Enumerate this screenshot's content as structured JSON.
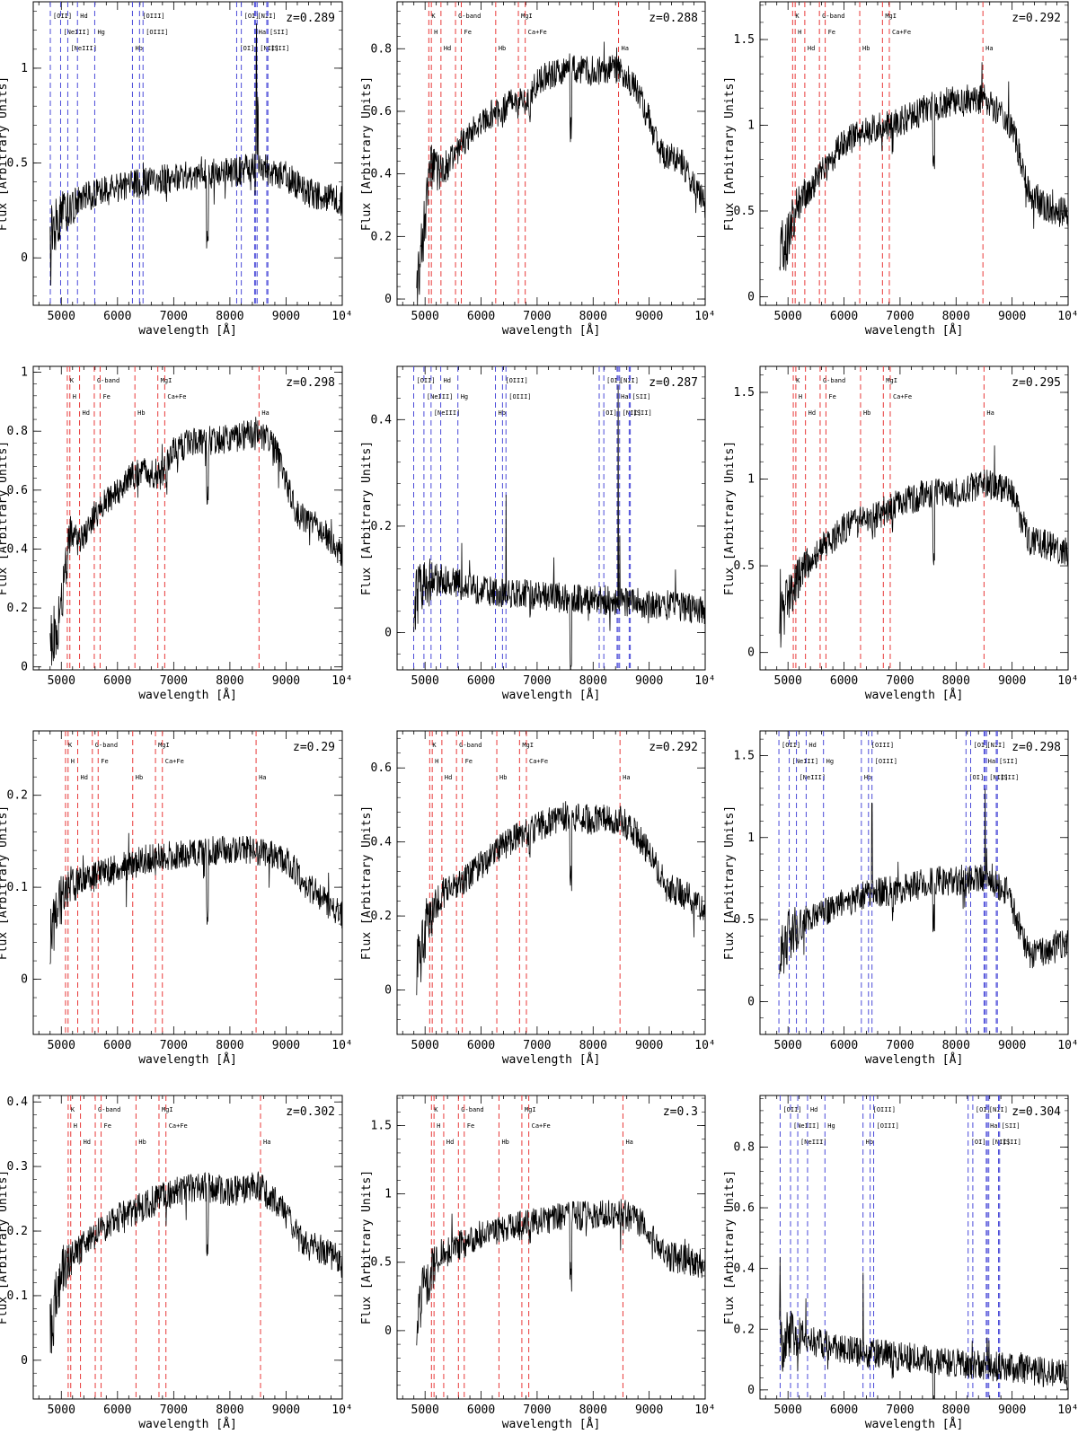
{
  "axis_labels": {
    "x": "wavelength [Å]",
    "y": "Flux [Arbitrary Units]"
  },
  "line_sets": {
    "absorption": {
      "color": "#e83a3a",
      "lines": [
        {
          "label": "K",
          "rest": 3934
        },
        {
          "label": "H",
          "rest": 3969
        },
        {
          "label": "Hd",
          "rest": 4102
        },
        {
          "label": "G-band",
          "rest": 4304
        },
        {
          "label": "Fe",
          "rest": 4384
        },
        {
          "label": "Hb",
          "rest": 4861
        },
        {
          "label": "MgI",
          "rest": 5175
        },
        {
          "label": "Ca+Fe",
          "rest": 5270
        },
        {
          "label": "Ha",
          "rest": 6563
        }
      ]
    },
    "emission": {
      "color": "#4b4bd8",
      "lines": [
        {
          "label": "[OII]",
          "rest": 3727
        },
        {
          "label": "[NeIII]",
          "rest": 3869
        },
        {
          "label": "[NeIII]",
          "rest": 3968
        },
        {
          "label": "Hd",
          "rest": 4102
        },
        {
          "label": "Hg",
          "rest": 4340
        },
        {
          "label": "Hb",
          "rest": 4861
        },
        {
          "label": "[OIII]",
          "rest": 4959
        },
        {
          "label": "[OIII]",
          "rest": 5007
        },
        {
          "label": "[OI]",
          "rest": 6300
        },
        {
          "label": "[OI]",
          "rest": 6364
        },
        {
          "label": "Ha",
          "rest": 6563
        },
        {
          "label": "[NII]",
          "rest": 6583
        },
        {
          "label": "[NII]",
          "rest": 6548
        },
        {
          "label": "[SII]",
          "rest": 6716
        },
        {
          "label": "[SII]",
          "rest": 6731
        }
      ]
    }
  },
  "chart_data": [
    {
      "type": "line",
      "z_label": "z=0.289",
      "z": 0.289,
      "lines": "emission",
      "xlim": [
        4500,
        10000
      ],
      "ylim": [
        -0.25,
        1.35
      ],
      "xticks": [
        "5000",
        "6000",
        "7000",
        "8000",
        "9000",
        "10⁴"
      ],
      "yticks": [
        "0",
        "0.5",
        "1"
      ],
      "continuum": [
        [
          4800,
          0.14
        ],
        [
          5000,
          0.22
        ],
        [
          5400,
          0.32
        ],
        [
          6000,
          0.37
        ],
        [
          6500,
          0.4
        ],
        [
          7000,
          0.42
        ],
        [
          7500,
          0.44
        ],
        [
          8000,
          0.45
        ],
        [
          8500,
          0.48
        ],
        [
          9000,
          0.43
        ],
        [
          9400,
          0.34
        ],
        [
          10000,
          0.3
        ]
      ],
      "emission_peaks": [
        [
          6460,
          0.1
        ],
        [
          8470,
          0.68
        ],
        [
          8500,
          0.3
        ]
      ]
    },
    {
      "type": "line",
      "z_label": "z=0.288",
      "z": 0.288,
      "lines": "absorption",
      "xlim": [
        4500,
        10000
      ],
      "ylim": [
        -0.02,
        0.95
      ],
      "xticks": [
        "5000",
        "6000",
        "7000",
        "8000",
        "9000",
        "10⁴"
      ],
      "yticks": [
        "0",
        "0.2",
        "0.4",
        "0.6",
        "0.8"
      ],
      "continuum": [
        [
          4850,
          0.02
        ],
        [
          5000,
          0.25
        ],
        [
          5100,
          0.42
        ],
        [
          5300,
          0.4
        ],
        [
          5600,
          0.48
        ],
        [
          6000,
          0.57
        ],
        [
          6500,
          0.62
        ],
        [
          6800,
          0.63
        ],
        [
          7000,
          0.7
        ],
        [
          7500,
          0.74
        ],
        [
          8000,
          0.73
        ],
        [
          8400,
          0.74
        ],
        [
          8800,
          0.67
        ],
        [
          9200,
          0.47
        ],
        [
          9600,
          0.43
        ],
        [
          10000,
          0.3
        ]
      ]
    },
    {
      "type": "line",
      "z_label": "z=0.292",
      "z": 0.292,
      "lines": "absorption",
      "xlim": [
        4500,
        10000
      ],
      "ylim": [
        -0.05,
        1.72
      ],
      "xticks": [
        "5000",
        "6000",
        "7000",
        "8000",
        "9000",
        "10⁴"
      ],
      "yticks": [
        "0",
        "0.5",
        "1",
        "1.5"
      ],
      "continuum": [
        [
          4850,
          0.22
        ],
        [
          5000,
          0.35
        ],
        [
          5200,
          0.55
        ],
        [
          5600,
          0.72
        ],
        [
          6000,
          0.9
        ],
        [
          6500,
          0.98
        ],
        [
          7000,
          1.02
        ],
        [
          7500,
          1.1
        ],
        [
          8000,
          1.15
        ],
        [
          8500,
          1.15
        ],
        [
          9000,
          1.0
        ],
        [
          9300,
          0.6
        ],
        [
          9600,
          0.52
        ],
        [
          10000,
          0.48
        ]
      ]
    },
    {
      "type": "line",
      "z_label": "z=0.298",
      "z": 0.298,
      "lines": "absorption",
      "xlim": [
        4500,
        10000
      ],
      "ylim": [
        -0.01,
        1.02
      ],
      "xticks": [
        "5000",
        "6000",
        "7000",
        "8000",
        "9000",
        "10⁴"
      ],
      "yticks": [
        "0",
        "0.2",
        "0.4",
        "0.6",
        "0.8",
        "1"
      ],
      "continuum": [
        [
          4800,
          0.05
        ],
        [
          5000,
          0.2
        ],
        [
          5150,
          0.45
        ],
        [
          5300,
          0.42
        ],
        [
          5600,
          0.52
        ],
        [
          6000,
          0.6
        ],
        [
          6400,
          0.67
        ],
        [
          6800,
          0.65
        ],
        [
          7000,
          0.74
        ],
        [
          7500,
          0.77
        ],
        [
          8000,
          0.77
        ],
        [
          8500,
          0.8
        ],
        [
          8800,
          0.74
        ],
        [
          9200,
          0.52
        ],
        [
          9600,
          0.47
        ],
        [
          10000,
          0.38
        ]
      ]
    },
    {
      "type": "line",
      "z_label": "z=0.287",
      "z": 0.287,
      "lines": "emission",
      "xlim": [
        4500,
        10000
      ],
      "ylim": [
        -0.07,
        0.5
      ],
      "xticks": [
        "5000",
        "6000",
        "7000",
        "8000",
        "9000",
        "10⁴"
      ],
      "yticks": [
        "0",
        "0.2",
        "0.4"
      ],
      "continuum": [
        [
          4800,
          0.06
        ],
        [
          5000,
          0.1
        ],
        [
          5300,
          0.1
        ],
        [
          6000,
          0.08
        ],
        [
          6500,
          0.075
        ],
        [
          7000,
          0.07
        ],
        [
          7500,
          0.065
        ],
        [
          8000,
          0.06
        ],
        [
          8500,
          0.06
        ],
        [
          9000,
          0.055
        ],
        [
          9500,
          0.05
        ],
        [
          10000,
          0.04
        ]
      ],
      "emission_peaks": [
        [
          6445,
          0.18
        ],
        [
          8447,
          0.38
        ],
        [
          8474,
          0.1
        ]
      ]
    },
    {
      "type": "line",
      "z_label": "z=0.295",
      "z": 0.295,
      "lines": "absorption",
      "xlim": [
        4500,
        10000
      ],
      "ylim": [
        -0.1,
        1.65
      ],
      "xticks": [
        "5000",
        "6000",
        "7000",
        "8000",
        "9000",
        "10⁴"
      ],
      "yticks": [
        "0",
        "0.5",
        "1",
        "1.5"
      ],
      "continuum": [
        [
          4850,
          0.18
        ],
        [
          5000,
          0.32
        ],
        [
          5300,
          0.5
        ],
        [
          5600,
          0.6
        ],
        [
          6000,
          0.72
        ],
        [
          6500,
          0.78
        ],
        [
          7000,
          0.86
        ],
        [
          7500,
          0.92
        ],
        [
          8000,
          0.92
        ],
        [
          8500,
          0.98
        ],
        [
          9000,
          0.92
        ],
        [
          9300,
          0.65
        ],
        [
          9600,
          0.62
        ],
        [
          10000,
          0.58
        ]
      ]
    },
    {
      "type": "line",
      "z_label": "z=0.29",
      "z": 0.29,
      "lines": "absorption",
      "xlim": [
        4500,
        10000
      ],
      "ylim": [
        -0.06,
        0.27
      ],
      "xticks": [
        "5000",
        "6000",
        "7000",
        "8000",
        "9000",
        "10⁴"
      ],
      "yticks": [
        "0",
        "0.1",
        "0.2"
      ],
      "continuum": [
        [
          4800,
          0.05
        ],
        [
          4950,
          0.08
        ],
        [
          5100,
          0.1
        ],
        [
          5500,
          0.11
        ],
        [
          6000,
          0.12
        ],
        [
          6500,
          0.13
        ],
        [
          7000,
          0.135
        ],
        [
          7500,
          0.14
        ],
        [
          8000,
          0.14
        ],
        [
          8500,
          0.14
        ],
        [
          9000,
          0.13
        ],
        [
          9400,
          0.1
        ],
        [
          10000,
          0.07
        ]
      ]
    },
    {
      "type": "line",
      "z_label": "z=0.292",
      "z": 0.292,
      "lines": "absorption",
      "xlim": [
        4500,
        10000
      ],
      "ylim": [
        -0.12,
        0.7
      ],
      "xticks": [
        "5000",
        "6000",
        "7000",
        "8000",
        "9000",
        "10⁴"
      ],
      "yticks": [
        "0",
        "0.2",
        "0.4",
        "0.6"
      ],
      "continuum": [
        [
          4850,
          0.05
        ],
        [
          5000,
          0.15
        ],
        [
          5300,
          0.26
        ],
        [
          5700,
          0.3
        ],
        [
          6000,
          0.34
        ],
        [
          6500,
          0.4
        ],
        [
          7000,
          0.44
        ],
        [
          7500,
          0.47
        ],
        [
          8000,
          0.46
        ],
        [
          8500,
          0.46
        ],
        [
          8900,
          0.4
        ],
        [
          9300,
          0.28
        ],
        [
          9700,
          0.25
        ],
        [
          10000,
          0.22
        ]
      ]
    },
    {
      "type": "line",
      "z_label": "z=0.298",
      "z": 0.298,
      "lines": "emission",
      "xlim": [
        4500,
        10000
      ],
      "ylim": [
        -0.2,
        1.65
      ],
      "xticks": [
        "5000",
        "6000",
        "7000",
        "8000",
        "9000",
        "10⁴"
      ],
      "yticks": [
        "0",
        "0.5",
        "1",
        "1.5"
      ],
      "continuum": [
        [
          4850,
          0.3
        ],
        [
          5000,
          0.4
        ],
        [
          5400,
          0.52
        ],
        [
          6000,
          0.6
        ],
        [
          6500,
          0.66
        ],
        [
          7000,
          0.68
        ],
        [
          7500,
          0.73
        ],
        [
          8000,
          0.74
        ],
        [
          8500,
          0.76
        ],
        [
          8900,
          0.68
        ],
        [
          9300,
          0.28
        ],
        [
          9500,
          0.3
        ],
        [
          10000,
          0.35
        ]
      ],
      "emission_peaks": [
        [
          6500,
          0.55
        ],
        [
          8519,
          0.6
        ],
        [
          8545,
          0.25
        ]
      ]
    },
    {
      "type": "line",
      "z_label": "z=0.302",
      "z": 0.302,
      "lines": "absorption",
      "xlim": [
        4500,
        10000
      ],
      "ylim": [
        -0.06,
        0.41
      ],
      "xticks": [
        "5000",
        "6000",
        "7000",
        "8000",
        "9000",
        "10⁴"
      ],
      "yticks": [
        "0",
        "0.1",
        "0.2",
        "0.3",
        "0.4"
      ],
      "continuum": [
        [
          4800,
          0.04
        ],
        [
          5000,
          0.14
        ],
        [
          5300,
          0.17
        ],
        [
          5700,
          0.2
        ],
        [
          6000,
          0.22
        ],
        [
          6500,
          0.24
        ],
        [
          7000,
          0.26
        ],
        [
          7500,
          0.27
        ],
        [
          8000,
          0.26
        ],
        [
          8500,
          0.27
        ],
        [
          8900,
          0.24
        ],
        [
          9300,
          0.18
        ],
        [
          9700,
          0.17
        ],
        [
          10000,
          0.15
        ]
      ]
    },
    {
      "type": "line",
      "z_label": "z=0.3",
      "z": 0.3,
      "lines": "absorption",
      "xlim": [
        4500,
        10000
      ],
      "ylim": [
        -0.5,
        1.72
      ],
      "xticks": [
        "5000",
        "6000",
        "7000",
        "8000",
        "9000",
        "10⁴"
      ],
      "yticks": [
        "0",
        "0.5",
        "1",
        "1.5"
      ],
      "continuum": [
        [
          4850,
          0.1
        ],
        [
          5000,
          0.35
        ],
        [
          5300,
          0.55
        ],
        [
          5600,
          0.62
        ],
        [
          6000,
          0.7
        ],
        [
          6500,
          0.75
        ],
        [
          7000,
          0.8
        ],
        [
          7500,
          0.84
        ],
        [
          8000,
          0.84
        ],
        [
          8500,
          0.86
        ],
        [
          8900,
          0.78
        ],
        [
          9300,
          0.55
        ],
        [
          9600,
          0.52
        ],
        [
          10000,
          0.48
        ]
      ]
    },
    {
      "type": "line",
      "z_label": "z=0.304",
      "z": 0.304,
      "lines": "emission",
      "xlim": [
        4500,
        10000
      ],
      "ylim": [
        -0.03,
        0.97
      ],
      "xticks": [
        "5000",
        "6000",
        "7000",
        "8000",
        "9000",
        "10⁴"
      ],
      "yticks": [
        "0",
        "0.2",
        "0.4",
        "0.6",
        "0.8"
      ],
      "continuum": [
        [
          4850,
          0.14
        ],
        [
          5000,
          0.18
        ],
        [
          5300,
          0.17
        ],
        [
          5600,
          0.15
        ],
        [
          6000,
          0.13
        ],
        [
          6500,
          0.12
        ],
        [
          7000,
          0.11
        ],
        [
          7500,
          0.1
        ],
        [
          8000,
          0.09
        ],
        [
          8500,
          0.08
        ],
        [
          9000,
          0.07
        ],
        [
          9500,
          0.06
        ],
        [
          10000,
          0.05
        ]
      ],
      "emission_peaks": [
        [
          6340,
          0.22
        ],
        [
          8558,
          0.1
        ],
        [
          8585,
          0.05
        ],
        [
          4860,
          0.28
        ]
      ]
    }
  ]
}
